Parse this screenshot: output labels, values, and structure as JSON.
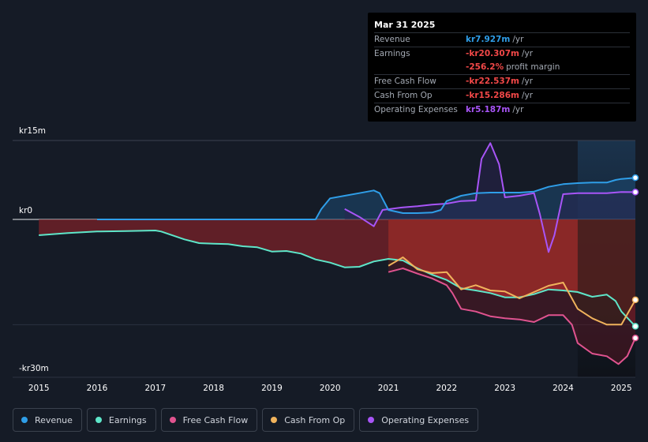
{
  "tooltip": {
    "date": "Mar 31 2025",
    "rows": [
      {
        "label": "Revenue",
        "value": "kr7.927m",
        "unit": "/yr",
        "color": "#2f9ee8"
      },
      {
        "label": "Earnings",
        "value": "-kr20.307m",
        "unit": "/yr",
        "color": "#f24848"
      },
      {
        "label": "",
        "value": "-256.2%",
        "unit": "profit margin",
        "color": "#f24848"
      },
      {
        "label": "Free Cash Flow",
        "value": "-kr22.537m",
        "unit": "/yr",
        "color": "#f24848"
      },
      {
        "label": "Cash From Op",
        "value": "-kr15.286m",
        "unit": "/yr",
        "color": "#f24848"
      },
      {
        "label": "Operating Expenses",
        "value": "kr5.187m",
        "unit": "/yr",
        "color": "#a855f7"
      }
    ]
  },
  "legend": [
    {
      "label": "Revenue",
      "color": "#2f9ee8"
    },
    {
      "label": "Earnings",
      "color": "#5ee6c9"
    },
    {
      "label": "Free Cash Flow",
      "color": "#e0538f"
    },
    {
      "label": "Cash From Op",
      "color": "#f0b35c"
    },
    {
      "label": "Operating Expenses",
      "color": "#a855f7"
    }
  ],
  "chart_data": {
    "type": "line",
    "title": "",
    "xlabel": "",
    "ylabel": "",
    "y_tick_labels": [
      {
        "value": 15,
        "label": "kr15m"
      },
      {
        "value": 0,
        "label": "kr0"
      },
      {
        "value": -30,
        "label": "-kr30m"
      }
    ],
    "x_tick_labels": [
      "2015",
      "2016",
      "2017",
      "2018",
      "2019",
      "2020",
      "2021",
      "2022",
      "2023",
      "2024",
      "2025"
    ],
    "x_ticks": [
      2015,
      2016,
      2017,
      2018,
      2019,
      2020,
      2021,
      2022,
      2023,
      2024,
      2025
    ],
    "xlim": [
      2014.55,
      2025.24
    ],
    "ylim": [
      -30,
      15
    ],
    "highlight_from": 2024.25,
    "series": [
      {
        "name": "Revenue",
        "color": "#2f9ee8",
        "fill": "#1e4a72",
        "points": [
          [
            2016.0,
            0.0
          ],
          [
            2019.75,
            0.0
          ],
          [
            2019.85,
            2.0
          ],
          [
            2020.0,
            4.0
          ],
          [
            2020.25,
            4.5
          ],
          [
            2020.5,
            5.0
          ],
          [
            2020.75,
            5.5
          ],
          [
            2020.85,
            5.0
          ],
          [
            2021.0,
            1.8
          ],
          [
            2021.25,
            1.2
          ],
          [
            2021.5,
            1.2
          ],
          [
            2021.75,
            1.3
          ],
          [
            2021.9,
            1.8
          ],
          [
            2022.0,
            3.5
          ],
          [
            2022.25,
            4.5
          ],
          [
            2022.5,
            5.0
          ],
          [
            2022.75,
            5.1
          ],
          [
            2023.0,
            5.1
          ],
          [
            2023.25,
            5.1
          ],
          [
            2023.5,
            5.3
          ],
          [
            2023.75,
            6.2
          ],
          [
            2024.0,
            6.7
          ],
          [
            2024.25,
            6.9
          ],
          [
            2024.5,
            7.0
          ],
          [
            2024.75,
            7.0
          ],
          [
            2024.9,
            7.5
          ],
          [
            2025.0,
            7.7
          ],
          [
            2025.24,
            7.927
          ]
        ]
      },
      {
        "name": "Earnings",
        "color": "#5ee6c9",
        "fill": "#7a2228",
        "points": [
          [
            2015.0,
            -3.0
          ],
          [
            2015.5,
            -2.6
          ],
          [
            2016.0,
            -2.3
          ],
          [
            2016.5,
            -2.2
          ],
          [
            2017.0,
            -2.1
          ],
          [
            2017.1,
            -2.3
          ],
          [
            2017.5,
            -3.8
          ],
          [
            2017.75,
            -4.5
          ],
          [
            2018.0,
            -4.6
          ],
          [
            2018.25,
            -4.7
          ],
          [
            2018.5,
            -5.1
          ],
          [
            2018.75,
            -5.3
          ],
          [
            2019.0,
            -6.1
          ],
          [
            2019.25,
            -6.0
          ],
          [
            2019.5,
            -6.5
          ],
          [
            2019.75,
            -7.6
          ],
          [
            2020.0,
            -8.2
          ],
          [
            2020.25,
            -9.1
          ],
          [
            2020.5,
            -9.0
          ],
          [
            2020.75,
            -8.0
          ],
          [
            2021.0,
            -7.5
          ],
          [
            2021.25,
            -7.8
          ],
          [
            2021.5,
            -9.3
          ],
          [
            2021.75,
            -10.5
          ],
          [
            2022.0,
            -11.5
          ],
          [
            2022.25,
            -13.1
          ],
          [
            2022.5,
            -13.5
          ],
          [
            2022.75,
            -14.0
          ],
          [
            2023.0,
            -14.8
          ],
          [
            2023.25,
            -14.8
          ],
          [
            2023.5,
            -14.2
          ],
          [
            2023.75,
            -13.3
          ],
          [
            2024.0,
            -13.5
          ],
          [
            2024.25,
            -13.8
          ],
          [
            2024.5,
            -14.7
          ],
          [
            2024.75,
            -14.3
          ],
          [
            2024.9,
            -15.5
          ],
          [
            2025.0,
            -17.5
          ],
          [
            2025.24,
            -20.307
          ]
        ]
      },
      {
        "name": "Free Cash Flow",
        "color": "#e0538f",
        "fill": "#5a1622",
        "points": [
          [
            2021.0,
            -10.0
          ],
          [
            2021.25,
            -9.3
          ],
          [
            2021.5,
            -10.3
          ],
          [
            2021.75,
            -11.2
          ],
          [
            2022.0,
            -12.5
          ],
          [
            2022.1,
            -14.0
          ],
          [
            2022.25,
            -17.0
          ],
          [
            2022.5,
            -17.5
          ],
          [
            2022.75,
            -18.4
          ],
          [
            2023.0,
            -18.8
          ],
          [
            2023.25,
            -19.0
          ],
          [
            2023.5,
            -19.5
          ],
          [
            2023.75,
            -18.2
          ],
          [
            2024.0,
            -18.2
          ],
          [
            2024.15,
            -20.0
          ],
          [
            2024.25,
            -23.5
          ],
          [
            2024.5,
            -25.5
          ],
          [
            2024.75,
            -26.0
          ],
          [
            2024.95,
            -27.5
          ],
          [
            2025.1,
            -26.0
          ],
          [
            2025.24,
            -22.537
          ]
        ]
      },
      {
        "name": "Cash From Op",
        "color": "#f0b35c",
        "fill": "#3a2418",
        "points": [
          [
            2021.0,
            -8.8
          ],
          [
            2021.25,
            -7.2
          ],
          [
            2021.5,
            -9.5
          ],
          [
            2021.75,
            -10.2
          ],
          [
            2022.0,
            -10.0
          ],
          [
            2022.25,
            -13.3
          ],
          [
            2022.5,
            -12.5
          ],
          [
            2022.75,
            -13.5
          ],
          [
            2023.0,
            -13.7
          ],
          [
            2023.25,
            -15.0
          ],
          [
            2023.5,
            -13.8
          ],
          [
            2023.75,
            -12.6
          ],
          [
            2024.0,
            -12.0
          ],
          [
            2024.25,
            -17.0
          ],
          [
            2024.5,
            -18.8
          ],
          [
            2024.75,
            -20.0
          ],
          [
            2025.0,
            -20.0
          ],
          [
            2025.24,
            -15.286
          ]
        ]
      },
      {
        "name": "Operating Expenses",
        "color": "#a855f7",
        "fill": "#2a2350",
        "points": [
          [
            2020.25,
            2.0
          ],
          [
            2020.5,
            0.5
          ],
          [
            2020.75,
            -1.3
          ],
          [
            2020.9,
            1.8
          ],
          [
            2021.25,
            2.3
          ],
          [
            2021.5,
            2.5
          ],
          [
            2021.75,
            2.8
          ],
          [
            2022.0,
            3.0
          ],
          [
            2022.25,
            3.5
          ],
          [
            2022.5,
            3.6
          ],
          [
            2022.6,
            11.5
          ],
          [
            2022.75,
            14.5
          ],
          [
            2022.9,
            10.5
          ],
          [
            2023.0,
            4.2
          ],
          [
            2023.25,
            4.5
          ],
          [
            2023.5,
            5.0
          ],
          [
            2023.6,
            1.0
          ],
          [
            2023.75,
            -6.2
          ],
          [
            2023.85,
            -3.0
          ],
          [
            2024.0,
            4.8
          ],
          [
            2024.25,
            5.0
          ],
          [
            2024.5,
            5.0
          ],
          [
            2024.75,
            5.0
          ],
          [
            2025.0,
            5.2
          ],
          [
            2025.24,
            5.187
          ]
        ]
      }
    ]
  }
}
